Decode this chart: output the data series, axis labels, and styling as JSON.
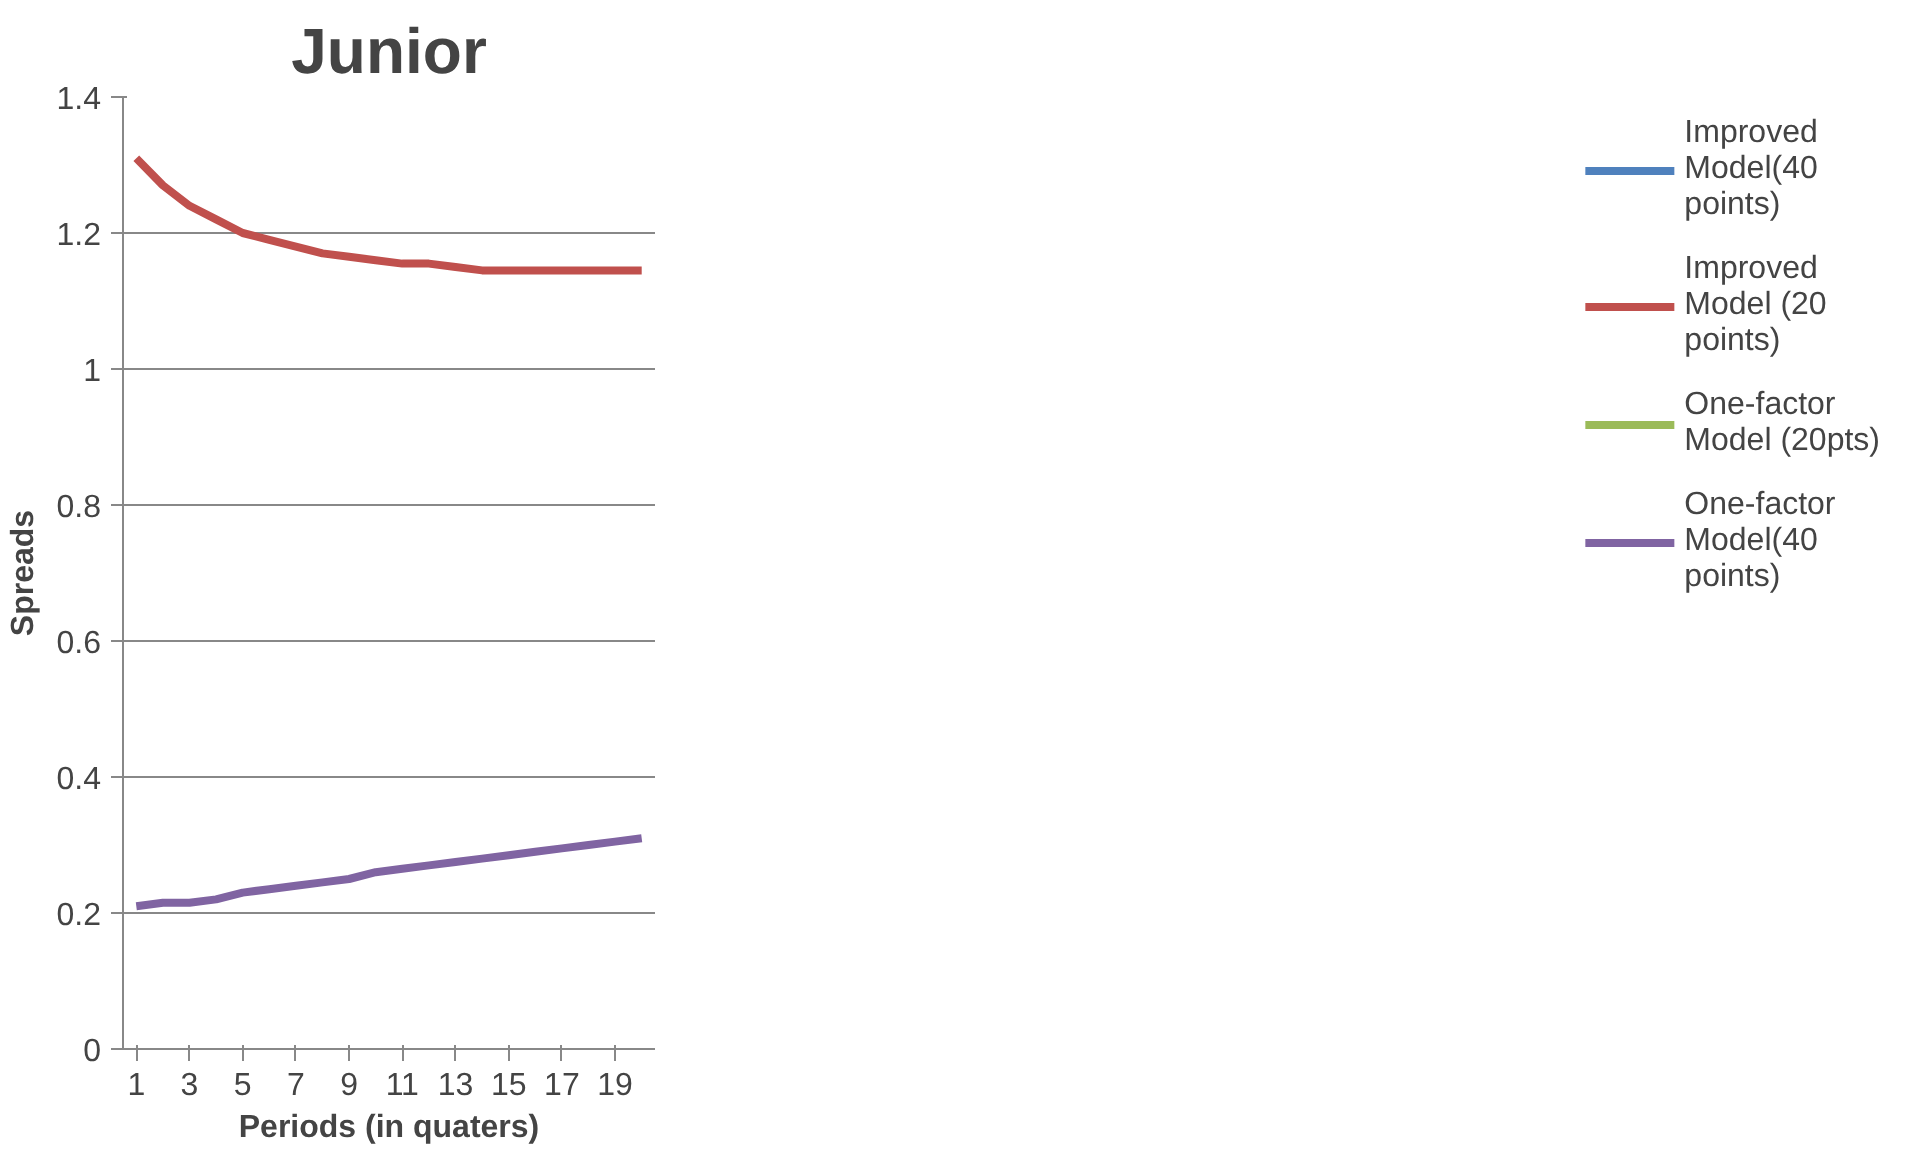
{
  "chart_data": {
    "type": "line",
    "title": "Junior",
    "xlabel": "Periods (in quaters)",
    "ylabel": "Spreads",
    "x": [
      1,
      2,
      3,
      4,
      5,
      6,
      7,
      8,
      9,
      10,
      11,
      12,
      13,
      14,
      15,
      16,
      17,
      18,
      19,
      20
    ],
    "xlim": [
      0.5,
      20.5
    ],
    "xticks": [
      1,
      3,
      5,
      7,
      9,
      11,
      13,
      15,
      17,
      19
    ],
    "ylim": [
      0,
      1.4
    ],
    "yticks": [
      0,
      0.2,
      0.4,
      0.6,
      0.8,
      1,
      1.2,
      1.4
    ],
    "grid": "y",
    "legend": "right",
    "marker": "none",
    "line_style": "solid",
    "series": [
      {
        "name": "Improved Model(40 points)",
        "color": "#4f81bd",
        "values": [
          null,
          null,
          null,
          null,
          null,
          null,
          null,
          null,
          null,
          null,
          null,
          null,
          null,
          null,
          null,
          null,
          null,
          null,
          null,
          null
        ]
      },
      {
        "name": "Improved Model (20 points)",
        "color": "#c0504d",
        "values": [
          1.31,
          1.27,
          1.24,
          1.22,
          1.2,
          1.19,
          1.18,
          1.17,
          1.165,
          1.16,
          1.155,
          1.155,
          1.15,
          1.145,
          1.145,
          1.145,
          1.145,
          1.145,
          1.145,
          1.145
        ]
      },
      {
        "name": "One-factor Model (20pts)",
        "color": "#9bbb59",
        "values": [
          null,
          null,
          null,
          null,
          null,
          null,
          null,
          null,
          null,
          null,
          null,
          null,
          null,
          null,
          null,
          null,
          null,
          null,
          null,
          null
        ]
      },
      {
        "name": "One-factor Model(40 points)",
        "color": "#8064a2",
        "values": [
          0.21,
          0.215,
          0.215,
          0.22,
          0.23,
          0.235,
          0.24,
          0.245,
          0.25,
          0.26,
          0.265,
          0.27,
          0.275,
          0.28,
          0.285,
          0.29,
          0.295,
          0.3,
          0.305,
          0.31
        ]
      }
    ]
  }
}
